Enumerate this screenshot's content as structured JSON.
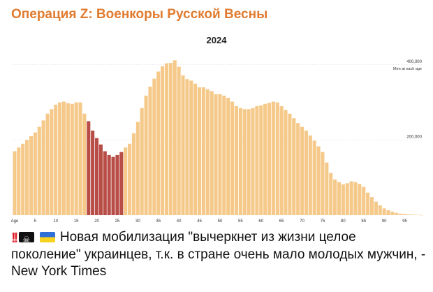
{
  "post": {
    "channel_title": "Операция Z: Военкоры Русской Весны",
    "caption": {
      "emoji": [
        "double-exclamation-icon",
        "pirate-flag-icon",
        "ukraine-flag-icon"
      ],
      "text": "Новая мобилизация \"вычеркнет из жизни целое поколение\" украинцев, т.к. в стране очень мало молодых мужчин, - New York Times"
    }
  },
  "chart_data": {
    "type": "bar",
    "title": "2024",
    "series_label": "Men at each age",
    "xlabel": "",
    "ylabel": "",
    "ylim": [
      0,
      420000
    ],
    "y_ticks": [
      {
        "value": 200000,
        "label": "200,000"
      },
      {
        "value": 400000,
        "label": "400,000"
      }
    ],
    "x_tick_labels": [
      "Age",
      "5",
      "10",
      "15",
      "20",
      "25",
      "30",
      "35",
      "40",
      "45",
      "50",
      "55",
      "60",
      "65",
      "70",
      "75",
      "80",
      "85",
      "90",
      "95"
    ],
    "x": [
      0,
      1,
      2,
      3,
      4,
      5,
      6,
      7,
      8,
      9,
      10,
      11,
      12,
      13,
      14,
      15,
      16,
      17,
      18,
      19,
      20,
      21,
      22,
      23,
      24,
      25,
      26,
      27,
      28,
      29,
      30,
      31,
      32,
      33,
      34,
      35,
      36,
      37,
      38,
      39,
      40,
      41,
      42,
      43,
      44,
      45,
      46,
      47,
      48,
      49,
      50,
      51,
      52,
      53,
      54,
      55,
      56,
      57,
      58,
      59,
      60,
      61,
      62,
      63,
      64,
      65,
      66,
      67,
      68,
      69,
      70,
      71,
      72,
      73,
      74,
      75,
      76,
      77,
      78,
      79,
      80,
      81,
      82,
      83,
      84,
      85,
      86,
      87,
      88,
      89,
      90,
      91,
      92,
      93,
      94,
      95,
      96,
      97,
      98,
      99
    ],
    "values": [
      170000,
      180000,
      190000,
      200000,
      210000,
      220000,
      235000,
      252000,
      270000,
      282000,
      294000,
      300000,
      302000,
      298000,
      296000,
      300000,
      300000,
      270000,
      250000,
      225000,
      205000,
      188000,
      170000,
      160000,
      155000,
      160000,
      168000,
      180000,
      190000,
      218000,
      248000,
      285000,
      318000,
      342000,
      363000,
      382000,
      396000,
      404000,
      405000,
      412000,
      395000,
      372000,
      362000,
      358000,
      350000,
      340000,
      340000,
      335000,
      330000,
      322000,
      322000,
      318000,
      312000,
      302000,
      290000,
      285000,
      282000,
      282000,
      285000,
      290000,
      292000,
      296000,
      299000,
      302000,
      300000,
      290000,
      280000,
      270000,
      258000,
      245000,
      235000,
      225000,
      212000,
      198000,
      183000,
      168000,
      140000,
      112000,
      95000,
      88000,
      82000,
      85000,
      90000,
      88000,
      83000,
      75000,
      60000,
      48000,
      36000,
      26000,
      18000,
      13000,
      9000,
      6000,
      4000,
      3000,
      2000,
      1500,
      1000,
      500
    ],
    "highlight_range": [
      18,
      27
    ],
    "colors": {
      "bar": "#f5c98a",
      "highlight": "#b84c46",
      "axis_text": "#333333"
    }
  }
}
